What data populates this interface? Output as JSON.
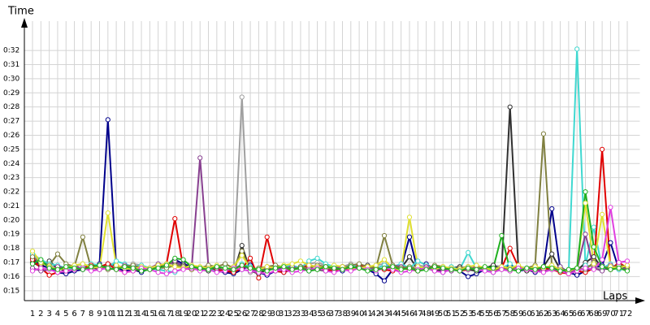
{
  "chart_data": {
    "type": "line",
    "y_label": "Time",
    "x_label": "Laps",
    "x": [
      1,
      2,
      3,
      4,
      5,
      6,
      7,
      8,
      9,
      10,
      11,
      12,
      13,
      14,
      15,
      16,
      17,
      18,
      19,
      20,
      21,
      22,
      23,
      24,
      25,
      26,
      27,
      28,
      29,
      30,
      31,
      32,
      33,
      34,
      35,
      36,
      37,
      38,
      39,
      40,
      41,
      42,
      43,
      44,
      45,
      46,
      47,
      48,
      49,
      50,
      51,
      52,
      53,
      54,
      55,
      56,
      57,
      58,
      59,
      60,
      61,
      62,
      63,
      64,
      65,
      66,
      67,
      68,
      69,
      70,
      71,
      72
    ],
    "xlim": [
      0,
      73.5
    ],
    "xticks": [
      1,
      2,
      3,
      4,
      5,
      6,
      7,
      8,
      9,
      10,
      11,
      12,
      13,
      14,
      15,
      16,
      17,
      18,
      19,
      20,
      21,
      22,
      23,
      24,
      25,
      26,
      27,
      28,
      29,
      30,
      31,
      32,
      33,
      34,
      35,
      36,
      37,
      38,
      39,
      40,
      41,
      42,
      43,
      44,
      45,
      46,
      47,
      48,
      49,
      50,
      51,
      52,
      53,
      54,
      55,
      56,
      57,
      58,
      59,
      60,
      61,
      62,
      63,
      64,
      65,
      66,
      67,
      68,
      69,
      70,
      71,
      72
    ],
    "ylim": [
      14.3,
      33.5
    ],
    "yticks": [
      {
        "value": 15,
        "label": "0:15"
      },
      {
        "value": 16,
        "label": "0:16"
      },
      {
        "value": 17,
        "label": "0:17"
      },
      {
        "value": 18,
        "label": "0:18"
      },
      {
        "value": 19,
        "label": "0:19"
      },
      {
        "value": 20,
        "label": "0:20"
      },
      {
        "value": 21,
        "label": "0:21"
      },
      {
        "value": 22,
        "label": "0:22"
      },
      {
        "value": 23,
        "label": "0:23"
      },
      {
        "value": 24,
        "label": "0:24"
      },
      {
        "value": 25,
        "label": "0:25"
      },
      {
        "value": 26,
        "label": "0:26"
      },
      {
        "value": 27,
        "label": "0:27"
      },
      {
        "value": 28,
        "label": "0:28"
      },
      {
        "value": 29,
        "label": "0:29"
      },
      {
        "value": 30,
        "label": "0:30"
      },
      {
        "value": 31,
        "label": "0:31"
      },
      {
        "value": 32,
        "label": "0:32"
      }
    ],
    "grid": true,
    "series": [
      {
        "color": "#00008b",
        "values": [
          17.3,
          16.8,
          16.6,
          16.3,
          16.2,
          16.4,
          16.5,
          16.7,
          16.9,
          27.1,
          16.6,
          16.4,
          16.5,
          16.3,
          16.6,
          16.5,
          16.8,
          17.2,
          16.9,
          16.7,
          16.6,
          16.5,
          16.4,
          16.3,
          16.2,
          16.5,
          16.8,
          16.3,
          16.1,
          16.4,
          16.3,
          16.5,
          16.6,
          16.4,
          16.6,
          16.7,
          16.5,
          16.4,
          16.6,
          16.8,
          16.5,
          16.2,
          15.7,
          16.5,
          16.6,
          18.8,
          16.4,
          16.9,
          16.5,
          16.3,
          16.6,
          16.4,
          16.0,
          16.2,
          16.5,
          16.3,
          16.6,
          16.8,
          16.4,
          16.5,
          16.3,
          16.6,
          20.8,
          16.5,
          16.3,
          16.1,
          16.4,
          16.6,
          16.8,
          18.4,
          16.5,
          16.7
        ]
      },
      {
        "color": "#a0a0a0",
        "values": [
          17.5,
          17.0,
          16.8,
          16.6,
          16.5,
          16.7,
          16.9,
          16.6,
          16.5,
          16.8,
          16.7,
          16.6,
          16.9,
          16.8,
          16.6,
          16.5,
          16.7,
          16.9,
          16.8,
          16.6,
          16.5,
          16.7,
          16.6,
          16.5,
          16.4,
          28.7,
          16.3,
          16.5,
          16.6,
          16.8,
          16.7,
          16.5,
          16.6,
          16.9,
          17.0,
          16.8,
          16.6,
          16.7,
          16.9,
          16.7,
          16.6,
          16.8,
          16.9,
          16.7,
          16.5,
          16.6,
          16.8,
          16.7,
          16.6,
          16.5,
          16.4,
          16.6,
          16.7,
          16.5,
          16.6,
          16.8,
          16.7,
          16.5,
          16.6,
          16.4,
          16.5,
          16.7,
          16.6,
          16.4,
          16.5,
          16.6,
          16.8,
          16.7,
          16.5,
          16.6,
          16.8,
          16.7
        ]
      },
      {
        "color": "#303030",
        "values": [
          17.0,
          16.7,
          17.1,
          16.6,
          16.4,
          16.5,
          16.6,
          16.7,
          16.5,
          16.9,
          16.8,
          16.6,
          16.5,
          16.4,
          16.6,
          16.7,
          16.9,
          17.0,
          16.8,
          16.6,
          16.5,
          16.4,
          16.6,
          16.5,
          16.3,
          18.2,
          16.4,
          16.2,
          16.5,
          16.6,
          16.4,
          16.5,
          16.7,
          16.6,
          16.5,
          16.4,
          16.6,
          16.7,
          16.5,
          16.6,
          16.8,
          16.6,
          16.5,
          16.7,
          16.6,
          17.4,
          16.5,
          16.6,
          16.4,
          16.5,
          16.6,
          16.7,
          16.5,
          16.4,
          16.6,
          16.8,
          16.5,
          28.0,
          16.6,
          16.4,
          16.5,
          16.7,
          17.6,
          16.5,
          16.3,
          16.4,
          17.0,
          17.4,
          16.6,
          16.5,
          16.8,
          16.6
        ]
      },
      {
        "color": "#40d8d0",
        "values": [
          17.6,
          17.2,
          16.9,
          16.8,
          16.6,
          16.5,
          16.7,
          16.9,
          16.8,
          16.6,
          17.1,
          16.9,
          16.7,
          16.8,
          16.6,
          16.5,
          16.4,
          16.3,
          16.6,
          16.7,
          16.6,
          16.5,
          16.4,
          16.6,
          16.5,
          16.9,
          16.7,
          16.4,
          16.6,
          16.5,
          16.7,
          16.8,
          16.6,
          17.1,
          17.3,
          16.9,
          16.7,
          16.6,
          16.8,
          16.7,
          16.5,
          16.6,
          16.8,
          16.7,
          16.9,
          16.6,
          17.1,
          16.8,
          16.6,
          16.5,
          16.7,
          16.5,
          17.7,
          16.6,
          16.5,
          16.4,
          16.6,
          16.9,
          16.5,
          16.6,
          16.4,
          16.6,
          16.5,
          16.7,
          16.3,
          32.1,
          16.8,
          19.5,
          16.6,
          16.9,
          16.5,
          16.6
        ]
      },
      {
        "color": "#e00000",
        "values": [
          17.2,
          16.6,
          16.1,
          16.3,
          16.4,
          16.5,
          16.6,
          16.8,
          16.7,
          16.9,
          16.5,
          16.3,
          16.4,
          16.6,
          16.5,
          16.8,
          16.9,
          20.1,
          16.6,
          16.5,
          16.6,
          16.7,
          16.5,
          16.4,
          16.3,
          16.6,
          17.3,
          15.9,
          18.8,
          16.4,
          16.3,
          16.5,
          16.6,
          16.8,
          16.7,
          16.5,
          16.4,
          16.6,
          16.5,
          16.8,
          16.7,
          16.6,
          16.5,
          16.4,
          16.6,
          16.5,
          16.4,
          16.6,
          16.7,
          16.5,
          16.6,
          16.4,
          16.5,
          16.7,
          16.6,
          16.5,
          16.6,
          18.0,
          16.7,
          16.5,
          16.4,
          16.6,
          16.5,
          16.3,
          16.2,
          16.4,
          16.3,
          16.6,
          25.0,
          16.5,
          17.0,
          16.6
        ]
      },
      {
        "color": "#884090",
        "values": [
          16.6,
          16.4,
          16.5,
          16.7,
          16.6,
          16.8,
          16.5,
          16.6,
          16.7,
          16.5,
          16.6,
          16.8,
          16.7,
          16.5,
          16.6,
          16.9,
          16.8,
          17.1,
          16.7,
          16.6,
          24.4,
          16.7,
          16.6,
          16.5,
          16.6,
          16.8,
          16.5,
          16.4,
          16.6,
          16.5,
          16.6,
          16.7,
          16.5,
          16.6,
          16.8,
          16.5,
          16.6,
          16.7,
          16.5,
          16.6,
          16.7,
          16.5,
          16.6,
          16.8,
          16.7,
          16.6,
          16.5,
          16.7,
          16.6,
          16.5,
          16.4,
          16.6,
          16.5,
          16.7,
          16.6,
          16.5,
          16.7,
          16.4,
          16.6,
          16.5,
          16.6,
          16.4,
          16.5,
          16.7,
          16.3,
          16.5,
          19.0,
          16.6,
          16.4,
          16.8,
          16.6,
          16.5
        ]
      },
      {
        "color": "#808040",
        "values": [
          17.4,
          16.9,
          16.8,
          17.6,
          16.9,
          16.7,
          18.8,
          16.6,
          16.7,
          16.5,
          16.6,
          16.7,
          16.8,
          16.6,
          16.5,
          16.7,
          16.6,
          16.8,
          16.7,
          16.5,
          16.6,
          16.8,
          16.7,
          16.9,
          16.6,
          17.8,
          16.5,
          16.6,
          16.7,
          16.8,
          16.6,
          16.5,
          16.7,
          16.6,
          16.8,
          16.7,
          16.5,
          16.6,
          16.8,
          16.9,
          16.7,
          16.6,
          18.9,
          16.8,
          16.6,
          16.7,
          16.5,
          16.6,
          16.8,
          16.7,
          16.5,
          16.6,
          16.7,
          16.5,
          16.6,
          16.4,
          16.6,
          16.5,
          16.7,
          16.6,
          16.8,
          26.1,
          16.7,
          16.5,
          16.4,
          16.6,
          16.5,
          17.0,
          16.7,
          16.6,
          16.8,
          16.7
        ]
      },
      {
        "color": "#e0e030",
        "values": [
          17.8,
          17.0,
          16.7,
          16.5,
          16.6,
          16.8,
          16.9,
          16.7,
          16.6,
          20.5,
          16.8,
          16.6,
          16.5,
          16.7,
          16.6,
          16.8,
          16.9,
          16.7,
          16.6,
          16.8,
          16.7,
          16.6,
          16.8,
          16.5,
          16.7,
          17.5,
          16.6,
          16.5,
          16.7,
          16.6,
          16.8,
          16.9,
          17.1,
          16.8,
          16.7,
          16.6,
          16.8,
          16.7,
          16.5,
          16.6,
          16.7,
          16.8,
          17.2,
          16.6,
          16.5,
          20.2,
          16.7,
          16.6,
          16.5,
          16.7,
          16.6,
          16.5,
          16.7,
          16.8,
          16.6,
          16.5,
          16.7,
          16.6,
          16.8,
          16.5,
          16.7,
          16.6,
          16.8,
          16.5,
          16.4,
          16.6,
          21.2,
          16.9,
          20.4,
          16.7,
          16.6,
          16.8
        ]
      },
      {
        "color": "#e040e0",
        "values": [
          16.4,
          16.6,
          16.5,
          16.3,
          16.4,
          16.5,
          16.6,
          16.4,
          16.5,
          16.6,
          16.5,
          16.3,
          16.4,
          16.6,
          16.5,
          16.3,
          16.2,
          16.4,
          16.5,
          16.6,
          16.4,
          16.5,
          16.3,
          16.4,
          16.6,
          16.5,
          16.4,
          16.3,
          16.2,
          16.4,
          16.5,
          16.3,
          16.4,
          16.5,
          16.6,
          16.4,
          16.3,
          16.5,
          16.4,
          16.6,
          16.5,
          16.4,
          16.6,
          16.5,
          16.3,
          16.4,
          16.5,
          16.6,
          16.4,
          16.3,
          16.5,
          16.4,
          16.6,
          16.5,
          16.4,
          16.3,
          16.5,
          16.4,
          16.6,
          16.5,
          16.4,
          16.3,
          16.5,
          16.4,
          16.2,
          16.4,
          16.6,
          16.5,
          17.2,
          20.9,
          17.0,
          17.1
        ]
      },
      {
        "color": "#20b020",
        "values": [
          16.9,
          17.2,
          16.6,
          16.5,
          16.7,
          16.6,
          16.5,
          16.7,
          16.8,
          16.6,
          16.5,
          16.7,
          16.6,
          16.4,
          16.5,
          16.6,
          16.8,
          17.3,
          17.2,
          16.7,
          16.6,
          16.5,
          16.7,
          16.6,
          16.5,
          16.8,
          16.6,
          16.5,
          16.4,
          16.6,
          16.7,
          16.5,
          16.6,
          16.4,
          16.5,
          16.7,
          16.6,
          16.5,
          16.7,
          16.6,
          16.4,
          16.5,
          16.6,
          16.7,
          16.5,
          16.6,
          16.4,
          16.5,
          16.7,
          16.6,
          16.5,
          16.4,
          16.6,
          16.5,
          16.7,
          16.6,
          18.9,
          16.5,
          16.4,
          16.6,
          16.5,
          16.7,
          16.6,
          16.4,
          16.5,
          16.6,
          22.0,
          18.1,
          16.7,
          16.5,
          16.6,
          16.4
        ]
      }
    ]
  }
}
